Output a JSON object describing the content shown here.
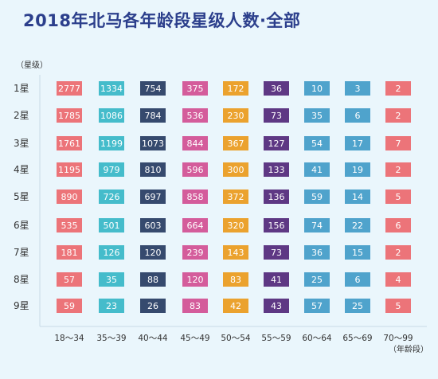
{
  "chart_data": {
    "type": "table",
    "title": "2018年北马各年龄段星级人数·全部",
    "ylabel": "（星级）",
    "xlabel": "（年龄段）",
    "rows": [
      "1星",
      "2星",
      "3星",
      "4星",
      "5星",
      "6星",
      "7星",
      "8星",
      "9星"
    ],
    "columns": [
      "18～34",
      "35～39",
      "40～44",
      "45～49",
      "50～54",
      "55～59",
      "60～64",
      "65～69",
      "70～99"
    ],
    "column_colors": [
      "#ec7479",
      "#45bccb",
      "#364a6e",
      "#d45c9b",
      "#eba22e",
      "#5e3884",
      "#4fa3cc",
      "#4fa3cc",
      "#ec7479"
    ],
    "values": [
      [
        2777,
        1334,
        754,
        375,
        172,
        36,
        10,
        3,
        2
      ],
      [
        1785,
        1086,
        784,
        536,
        230,
        73,
        35,
        6,
        2
      ],
      [
        1761,
        1199,
        1073,
        844,
        367,
        127,
        54,
        17,
        7
      ],
      [
        1195,
        979,
        810,
        596,
        300,
        133,
        41,
        19,
        2
      ],
      [
        890,
        726,
        697,
        858,
        372,
        136,
        59,
        14,
        5
      ],
      [
        535,
        501,
        603,
        664,
        320,
        156,
        74,
        22,
        6
      ],
      [
        181,
        126,
        120,
        239,
        143,
        73,
        36,
        15,
        2
      ],
      [
        57,
        35,
        88,
        120,
        83,
        41,
        25,
        6,
        4
      ],
      [
        59,
        23,
        26,
        83,
        42,
        43,
        57,
        25,
        5
      ]
    ]
  }
}
